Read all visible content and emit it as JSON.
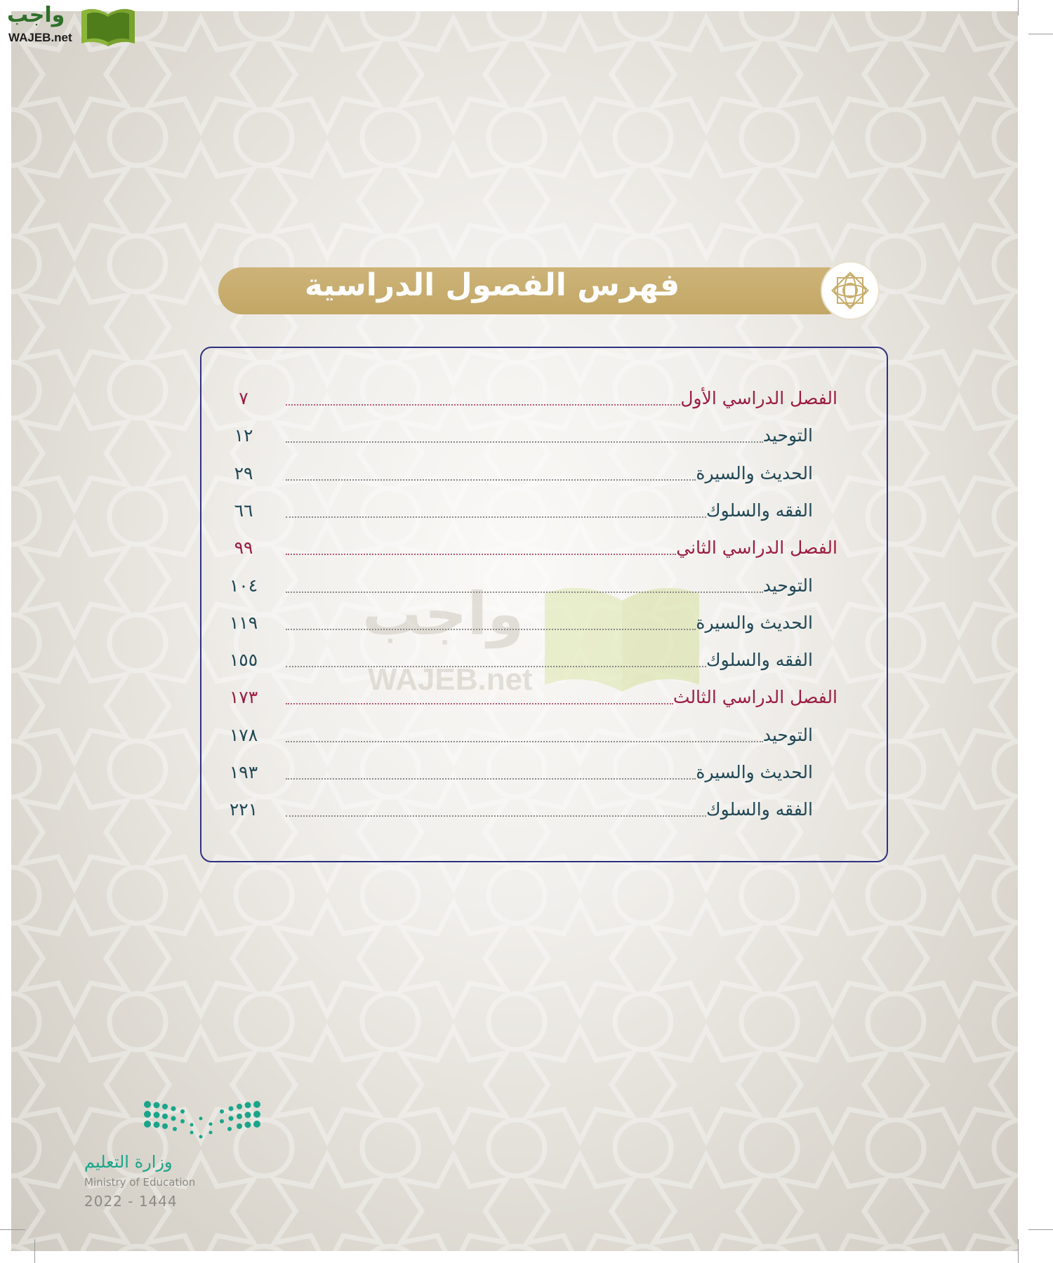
{
  "watermark": {
    "arabic": "واجب",
    "latin": "WAJEB.net"
  },
  "header": {
    "title": "فهرس الفصول الدراسية",
    "ornament_icon": "rosette-icon"
  },
  "toc": [
    {
      "type": "chapter",
      "title": "الفصل الدراسي الأول",
      "page": "٧"
    },
    {
      "type": "sub",
      "title": "التوحيد",
      "page": "١٢"
    },
    {
      "type": "sub",
      "title": "الحديث والسيرة",
      "page": "٢٩"
    },
    {
      "type": "sub",
      "title": "الفقه والسلوك",
      "page": "٦٦"
    },
    {
      "type": "chapter",
      "title": "الفصل الدراسي الثاني",
      "page": "٩٩"
    },
    {
      "type": "sub",
      "title": "التوحيد",
      "page": "١٠٤"
    },
    {
      "type": "sub",
      "title": "الحديث والسيرة",
      "page": "١١٩"
    },
    {
      "type": "sub",
      "title": "الفقه والسلوك",
      "page": "١٥٥"
    },
    {
      "type": "chapter",
      "title": "الفصل الدراسي الثالث",
      "page": "١٧٣"
    },
    {
      "type": "sub",
      "title": "التوحيد",
      "page": "١٧٨"
    },
    {
      "type": "sub",
      "title": "الحديث والسيرة",
      "page": "١٩٣"
    },
    {
      "type": "sub",
      "title": "الفقه والسلوك",
      "page": "٢٢١"
    }
  ],
  "ministry": {
    "arabic": "وزارة التعليم",
    "english": "Ministry of Education",
    "year": "2022 - 1444"
  },
  "colors": {
    "chapter": "#9c1c42",
    "sub": "#1f4755",
    "banner": "#c8ad6e",
    "border": "#2e3180",
    "ministry": "#1aa58a"
  }
}
